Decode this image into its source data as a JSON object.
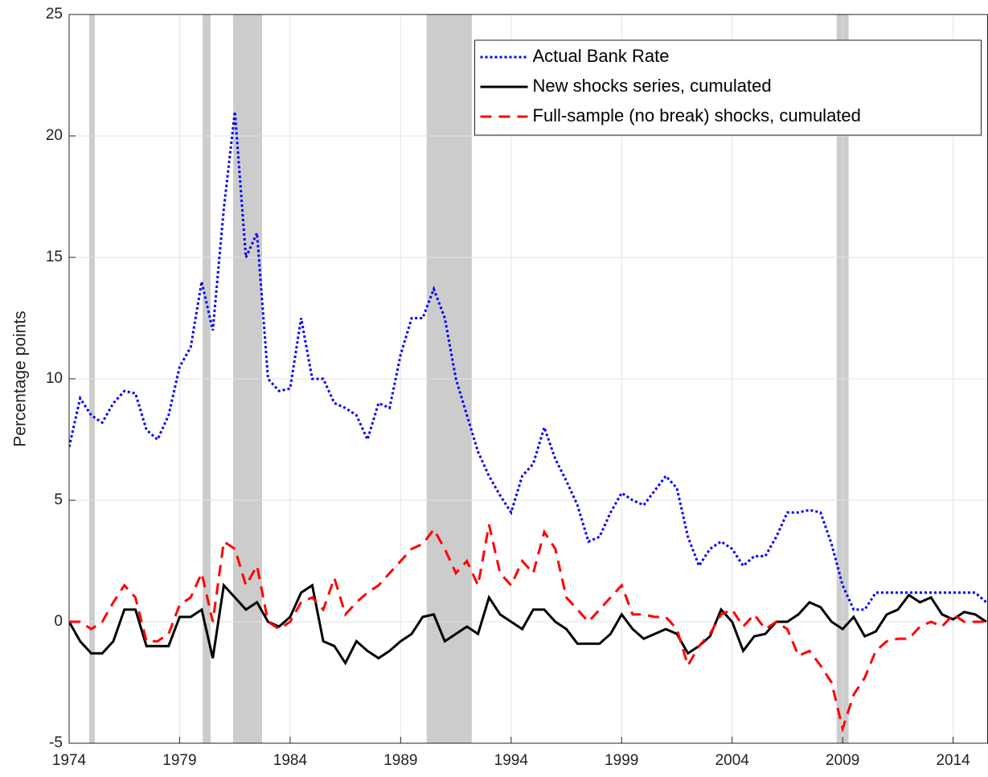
{
  "chart_data": {
    "type": "line",
    "ylabel": "Percentage points",
    "x": [
      1974,
      1974.5,
      1975,
      1975.5,
      1976,
      1976.5,
      1977,
      1977.5,
      1978,
      1978.5,
      1979,
      1979.5,
      1980,
      1980.5,
      1981,
      1981.5,
      1982,
      1982.5,
      1983,
      1983.5,
      1984,
      1984.5,
      1985,
      1985.5,
      1986,
      1986.5,
      1987,
      1987.5,
      1988,
      1988.5,
      1989,
      1989.5,
      1990,
      1990.5,
      1991,
      1991.5,
      1992,
      1992.5,
      1993,
      1993.5,
      1994,
      1994.5,
      1995,
      1995.5,
      1996,
      1996.5,
      1997,
      1997.5,
      1998,
      1998.5,
      1999,
      1999.5,
      2000,
      2000.5,
      2001,
      2001.5,
      2002,
      2002.5,
      2003,
      2003.5,
      2004,
      2004.5,
      2005,
      2005.5,
      2006,
      2006.5,
      2007,
      2007.5,
      2008,
      2008.5,
      2009,
      2009.5,
      2010,
      2010.5,
      2011,
      2011.5,
      2012,
      2012.5,
      2013,
      2013.5,
      2014,
      2014.5,
      2015,
      2015.5
    ],
    "series": [
      {
        "name": "Actual Bank Rate",
        "color": "#0000ff",
        "style": "dotted",
        "values": [
          7.2,
          9.2,
          8.5,
          8.2,
          9,
          9.5,
          9.4,
          7.9,
          7.5,
          8.5,
          10.5,
          11.3,
          14,
          12,
          17,
          21,
          15,
          16,
          10,
          9.5,
          9.6,
          12.5,
          10,
          10,
          9,
          8.8,
          8.5,
          7.5,
          9,
          8.8,
          11,
          12.5,
          12.5,
          13.7,
          12.5,
          10,
          8.5,
          7,
          6,
          5.2,
          4.5,
          6,
          6.5,
          8,
          6.7,
          5.8,
          4.8,
          3.3,
          3.5,
          4.5,
          5.3,
          5,
          4.8,
          5.4,
          6,
          5.5,
          3.5,
          2.3,
          3,
          3.3,
          3,
          2.3,
          2.7,
          2.7,
          3.5,
          4.5,
          4.5,
          4.6,
          4.5,
          3.2,
          1.5,
          0.5,
          0.5,
          1.2,
          1.2,
          1.2,
          1.2,
          1.2,
          1.2,
          1.2,
          1.2,
          1.2,
          1.2,
          0.8
        ]
      },
      {
        "name": "New shocks series, cumulated",
        "color": "#000000",
        "style": "solid",
        "values": [
          0,
          -0.8,
          -1.3,
          -1.3,
          -0.8,
          0.5,
          0.5,
          -1,
          -1,
          -1,
          0.2,
          0.2,
          0.5,
          -1.5,
          1.5,
          1,
          0.5,
          0.8,
          0,
          -0.2,
          0.2,
          1.2,
          1.5,
          -0.8,
          -1,
          -1.7,
          -0.8,
          -1.2,
          -1.5,
          -1.2,
          -0.8,
          -0.5,
          0.2,
          0.3,
          -0.8,
          -0.5,
          -0.2,
          -0.5,
          1,
          0.3,
          0,
          -0.3,
          0.5,
          0.5,
          0,
          -0.3,
          -0.9,
          -0.9,
          -0.9,
          -0.5,
          0.3,
          -0.3,
          -0.7,
          -0.5,
          -0.3,
          -0.5,
          -1.3,
          -1,
          -0.6,
          0.5,
          0,
          -1.2,
          -0.6,
          -0.5,
          0,
          0,
          0.3,
          0.8,
          0.6,
          0,
          -0.3,
          0.2,
          -0.6,
          -0.4,
          0.3,
          0.5,
          1.1,
          0.8,
          1,
          0.3,
          0.1,
          0.4,
          0.3,
          0
        ]
      },
      {
        "name": "Full-sample (no break) shocks, cumulated",
        "color": "#ff0000",
        "style": "dashed",
        "values": [
          0,
          0,
          -0.3,
          0,
          0.8,
          1.5,
          1,
          -0.8,
          -0.8,
          -0.5,
          0.7,
          1,
          2,
          0,
          3.3,
          3,
          1.5,
          2.3,
          0,
          -0.3,
          0,
          0.8,
          1,
          0.5,
          1.8,
          0.3,
          0.8,
          1.2,
          1.5,
          2,
          2.5,
          3,
          3.2,
          3.8,
          3,
          2,
          2.5,
          1.5,
          4,
          2,
          1.5,
          2.5,
          2,
          3.7,
          3,
          1,
          0.5,
          0,
          0.5,
          1,
          1.5,
          0.3,
          0.3,
          0.2,
          0.2,
          -0.3,
          -1.8,
          -1,
          -0.5,
          0.3,
          0.5,
          -0.2,
          0.3,
          -0.3,
          0,
          -0.3,
          -1.4,
          -1.2,
          -1.8,
          -2.5,
          -4.4,
          -3,
          -2.3,
          -1.2,
          -0.8,
          -0.7,
          -0.7,
          -0.2,
          0,
          -0.2,
          0.3,
          0,
          0,
          0
        ]
      }
    ],
    "shaded_periods": [
      [
        1974.91,
        1975.16
      ],
      [
        1980.04,
        1980.4
      ],
      [
        1981.42,
        1982.73
      ],
      [
        1990.18,
        1992.22
      ],
      [
        2008.73,
        2009.27
      ]
    ],
    "shade_color": "#cccccc",
    "xlim": [
      1974,
      2015.56
    ],
    "ylim": [
      -5,
      25
    ],
    "xticks": [
      1974,
      1979,
      1984,
      1989,
      1994,
      1999,
      2004,
      2009,
      2014
    ],
    "yticks": [
      -5,
      0,
      5,
      10,
      15,
      20,
      25
    ],
    "grid": true,
    "legend": "upper right"
  }
}
